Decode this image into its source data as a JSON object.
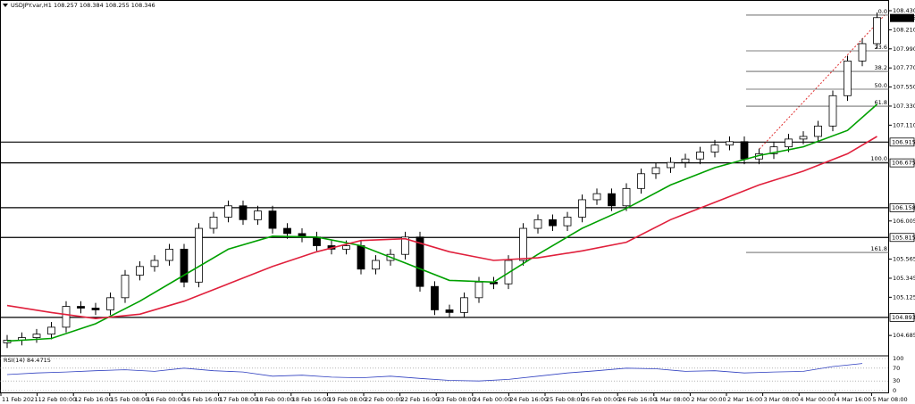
{
  "chart_data": {
    "type": "candlestick",
    "header": "USDJPY.var,H1  108.257 108.384 108.255 108.346",
    "ylim": [
      104.46,
      108.43
    ],
    "yticks": [
      {
        "value": 108.43,
        "label": "108.430"
      },
      {
        "value": 108.21,
        "label": "108.210"
      },
      {
        "value": 107.99,
        "label": "107.990"
      },
      {
        "value": 107.77,
        "label": "107.770"
      },
      {
        "value": 107.55,
        "label": "107.550"
      },
      {
        "value": 107.33,
        "label": "107.330"
      },
      {
        "value": 107.11,
        "label": "107.110"
      },
      {
        "value": 106.005,
        "label": "106.005"
      },
      {
        "value": 105.565,
        "label": "105.565"
      },
      {
        "value": 105.345,
        "label": "105.345"
      },
      {
        "value": 105.125,
        "label": "105.125"
      },
      {
        "value": 104.685,
        "label": "104.685"
      }
    ],
    "x_labels": [
      "11 Feb 2021",
      "12 Feb 00:00",
      "12 Feb 16:00",
      "15 Feb 08:00",
      "16 Feb 00:00",
      "16 Feb 16:00",
      "17 Feb 08:00",
      "18 Feb 00:00",
      "18 Feb 16:00",
      "19 Feb 08:00",
      "22 Feb 00:00",
      "22 Feb 16:00",
      "23 Feb 08:00",
      "24 Feb 00:00",
      "24 Feb 16:00",
      "25 Feb 08:00",
      "26 Feb 00:00",
      "26 Feb 16:00",
      "1 Mar 08:00",
      "2 Mar 00:00",
      "2 Mar 16:00",
      "3 Mar 08:00",
      "4 Mar 00:00",
      "4 Mar 16:00",
      "5 Mar 08:00"
    ],
    "open": [
      104.6,
      104.63,
      104.66,
      104.7,
      104.78,
      105.02,
      105.0,
      104.98,
      105.12,
      105.38,
      105.48,
      105.55,
      105.68,
      105.3,
      105.92,
      106.05,
      106.18,
      106.02,
      106.12,
      105.92,
      105.86,
      105.82,
      105.72,
      105.68,
      105.72,
      105.45,
      105.55,
      105.62,
      105.82,
      105.25,
      104.98,
      104.95,
      105.12,
      105.3,
      105.28,
      105.55,
      105.92,
      106.02,
      105.95,
      106.05,
      106.25,
      106.32,
      106.18,
      106.38,
      106.55,
      106.62,
      106.68,
      106.72,
      106.8,
      106.88,
      106.92,
      106.72,
      106.78,
      106.86,
      106.95,
      106.98,
      107.1,
      107.45,
      107.85,
      108.05
    ],
    "high": [
      104.69,
      104.72,
      104.76,
      104.84,
      105.08,
      105.08,
      105.06,
      105.18,
      105.44,
      105.54,
      105.61,
      105.74,
      105.74,
      105.98,
      106.11,
      106.24,
      106.24,
      106.18,
      106.18,
      105.98,
      105.92,
      105.88,
      105.78,
      105.78,
      105.78,
      105.61,
      105.68,
      105.88,
      105.88,
      105.31,
      105.04,
      105.18,
      105.36,
      105.36,
      105.61,
      105.98,
      106.08,
      106.08,
      106.11,
      106.31,
      106.38,
      106.38,
      106.44,
      106.61,
      106.68,
      106.74,
      106.78,
      106.86,
      106.94,
      106.98,
      106.98,
      106.84,
      106.92,
      107.01,
      107.04,
      107.16,
      107.51,
      107.91,
      108.11,
      108.41
    ],
    "low": [
      104.54,
      104.57,
      104.6,
      104.64,
      104.72,
      104.94,
      104.92,
      104.92,
      105.06,
      105.32,
      105.42,
      105.49,
      105.24,
      105.24,
      105.86,
      105.99,
      105.96,
      105.96,
      105.86,
      105.8,
      105.76,
      105.66,
      105.62,
      105.62,
      105.39,
      105.39,
      105.49,
      105.56,
      105.19,
      104.92,
      104.89,
      104.89,
      105.06,
      105.22,
      105.22,
      105.49,
      105.86,
      105.89,
      105.89,
      105.99,
      106.19,
      106.12,
      106.12,
      106.32,
      106.49,
      106.56,
      106.62,
      106.66,
      106.74,
      106.82,
      106.66,
      106.66,
      106.72,
      106.8,
      106.89,
      106.92,
      107.04,
      107.39,
      107.79,
      107.99
    ],
    "close": [
      104.63,
      104.66,
      104.7,
      104.78,
      105.02,
      105.0,
      104.98,
      105.12,
      105.38,
      105.48,
      105.55,
      105.68,
      105.3,
      105.92,
      106.05,
      106.18,
      106.02,
      106.12,
      105.92,
      105.86,
      105.82,
      105.72,
      105.68,
      105.72,
      105.45,
      105.55,
      105.62,
      105.82,
      105.25,
      104.98,
      104.95,
      105.12,
      105.3,
      105.28,
      105.55,
      105.92,
      106.02,
      105.95,
      106.05,
      106.25,
      106.32,
      106.18,
      106.38,
      106.55,
      106.62,
      106.68,
      106.72,
      106.8,
      106.88,
      106.92,
      106.72,
      106.78,
      106.86,
      106.95,
      106.98,
      107.1,
      107.45,
      107.85,
      108.05,
      108.35
    ],
    "series": [
      {
        "color": "#00a000",
        "x": [
          0,
          3,
          6,
          9,
          12,
          15,
          18,
          21,
          24,
          27,
          30,
          33,
          36,
          39,
          42,
          45,
          48,
          51,
          54,
          57,
          59
        ],
        "values": [
          104.62,
          104.65,
          104.82,
          105.08,
          105.38,
          105.68,
          105.83,
          105.82,
          105.72,
          105.52,
          105.32,
          105.3,
          105.62,
          105.92,
          106.15,
          106.42,
          106.62,
          106.76,
          106.86,
          107.05,
          107.35
        ]
      },
      {
        "color": "#e0203c",
        "x": [
          0,
          3,
          6,
          9,
          12,
          15,
          18,
          21,
          24,
          27,
          30,
          33,
          36,
          39,
          42,
          45,
          48,
          51,
          54,
          57,
          59
        ],
        "values": [
          105.03,
          104.95,
          104.88,
          104.93,
          105.08,
          105.28,
          105.48,
          105.65,
          105.78,
          105.8,
          105.65,
          105.55,
          105.58,
          105.66,
          105.76,
          106.02,
          106.22,
          106.42,
          106.58,
          106.78,
          106.98
        ]
      }
    ],
    "levels": [
      106.915,
      106.675,
      106.158,
      105.815,
      104.893
    ],
    "current_price": 108.346,
    "fib": [
      {
        "value": 108.379,
        "label": "0.0"
      },
      {
        "value": 107.967,
        "label": "23.6"
      },
      {
        "value": 107.73,
        "label": "38.2"
      },
      {
        "value": 107.525,
        "label": "50.0"
      },
      {
        "value": 107.329,
        "label": "61.8"
      },
      {
        "value": 106.681,
        "label": "100.0"
      },
      {
        "value": 105.642,
        "label": "161.8"
      }
    ],
    "rsi": {
      "label": "RSI(14) 84.4715",
      "ylim": [
        0,
        100
      ],
      "yticks": [
        100,
        70,
        30,
        0
      ],
      "color": "#3040c0",
      "x": [
        0,
        2,
        4,
        6,
        8,
        10,
        12,
        14,
        16,
        18,
        20,
        22,
        24,
        26,
        28,
        30,
        32,
        34,
        36,
        38,
        40,
        42,
        44,
        46,
        48,
        50,
        52,
        54,
        56,
        58
      ],
      "values": [
        50,
        55,
        58,
        62,
        65,
        60,
        70,
        62,
        58,
        45,
        48,
        42,
        40,
        45,
        38,
        32,
        30,
        35,
        45,
        55,
        62,
        70,
        68,
        60,
        62,
        55,
        58,
        60,
        75,
        84.47
      ]
    }
  }
}
